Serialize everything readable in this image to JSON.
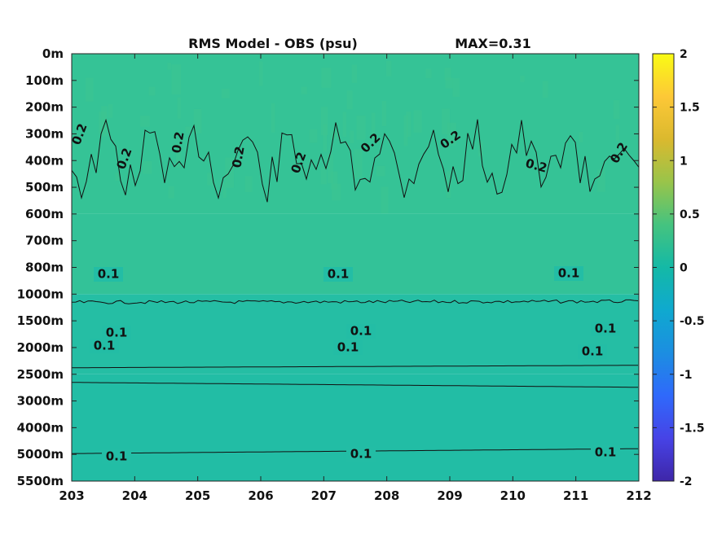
{
  "chart_data": {
    "type": "heatmap",
    "title": "RMS Model - OBS (psu)",
    "annotation": "MAX=0.31",
    "xlabel": "",
    "ylabel": "",
    "xlim": [
      203,
      212
    ],
    "x_ticks": [
      "203",
      "204",
      "205",
      "206",
      "207",
      "208",
      "209",
      "210",
      "211",
      "212"
    ],
    "y_ticks": [
      "0m",
      "100m",
      "200m",
      "300m",
      "400m",
      "500m",
      "600m",
      "700m",
      "800m",
      "1000m",
      "1500m",
      "2000m",
      "2500m",
      "3000m",
      "4000m",
      "5000m",
      "5500m"
    ],
    "colorbar": {
      "limits": [
        -2,
        2
      ],
      "ticks": [
        "2",
        "1.5",
        "1",
        "0.5",
        "0",
        "-0.5",
        "-1",
        "-1.5",
        "-2"
      ],
      "colormap": "parula",
      "colors": [
        "#3e26a8",
        "#4743e6",
        "#2f69fb",
        "#1c8ee1",
        "#0fa9cf",
        "#14b9a6",
        "#45c37f",
        "#99c44a",
        "#dbb92e",
        "#fdc837",
        "#f9fb14"
      ]
    },
    "field_bands": [
      {
        "depth_range": [
          "0m",
          "600m"
        ],
        "value": 0.22,
        "color": "#35c396"
      },
      {
        "depth_range": [
          "600m",
          "1000m"
        ],
        "value": 0.2,
        "color": "#33c298"
      },
      {
        "depth_range": [
          "1000m",
          "2500m"
        ],
        "value": 0.12,
        "color": "#25bea4"
      },
      {
        "depth_range": [
          "2500m",
          "5500m"
        ],
        "value": 0.1,
        "color": "#22bda5"
      }
    ],
    "contours": [
      {
        "level": "0.2",
        "approx_depth": "300m-500m",
        "label_text": "0.2"
      },
      {
        "level": "0.1",
        "approx_depth": "1000m",
        "label_text": "0.1"
      },
      {
        "level": "0.1",
        "approx_depth": "2500m",
        "label_text": "0.1"
      },
      {
        "level": "0.1",
        "approx_depth": "2500m-3000m",
        "label_text": "0.1"
      },
      {
        "level": "0.1",
        "approx_depth": "5000m",
        "label_text": "0.1"
      }
    ],
    "max_value": 0.31
  }
}
